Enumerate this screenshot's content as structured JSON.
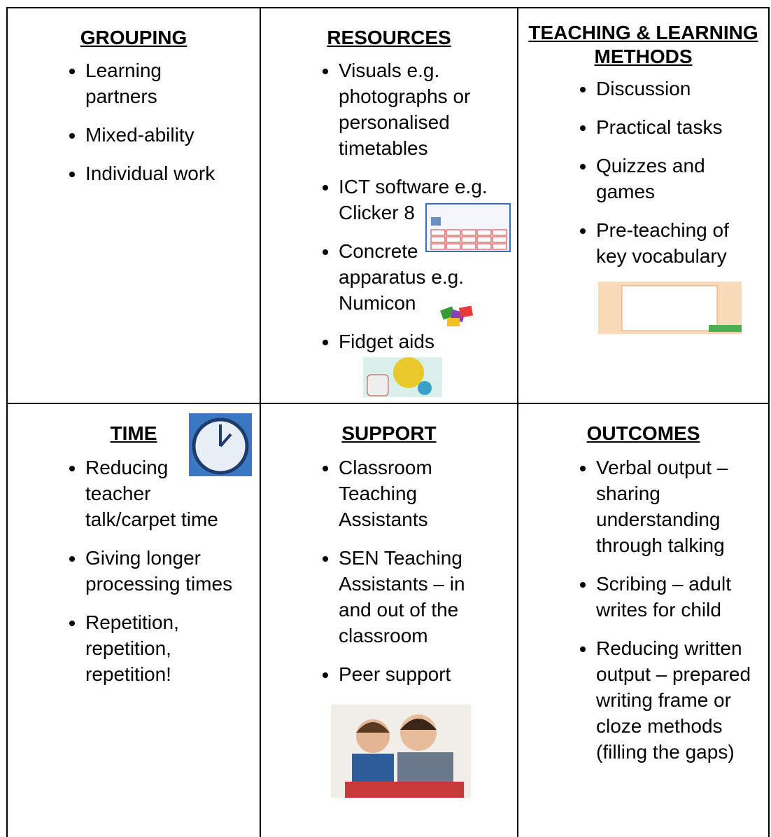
{
  "table": {
    "cells": [
      {
        "heading": "GROUPING",
        "items": [
          "Learning partners",
          "Mixed-ability",
          "Individual work"
        ]
      },
      {
        "heading": "RESOURCES",
        "items": [
          "Visuals e.g. photographs or personalised timetables",
          "ICT software e.g. Clicker 8",
          "Concrete apparatus e.g. Numicon",
          "Fidget aids"
        ]
      },
      {
        "heading": "TEACHING & LEARNING METHODS",
        "items": [
          "Discussion",
          "Practical tasks",
          "Quizzes and games",
          "Pre-teaching of key vocabulary"
        ]
      },
      {
        "heading": "TIME",
        "items": [
          "Reducing teacher talk/carpet time",
          "Giving longer processing times",
          "Repetition, repetition, repetition!"
        ]
      },
      {
        "heading": "SUPPORT",
        "items": [
          "Classroom Teaching Assistants",
          "SEN Teaching Assistants – in and out of the classroom",
          "Peer support"
        ]
      },
      {
        "heading": "OUTCOMES",
        "items": [
          "Verbal output – sharing understanding through talking",
          "Scribing – adult writes for child",
          "Reducing written output – prepared writing frame or cloze methods (filling the gaps)"
        ]
      }
    ]
  }
}
